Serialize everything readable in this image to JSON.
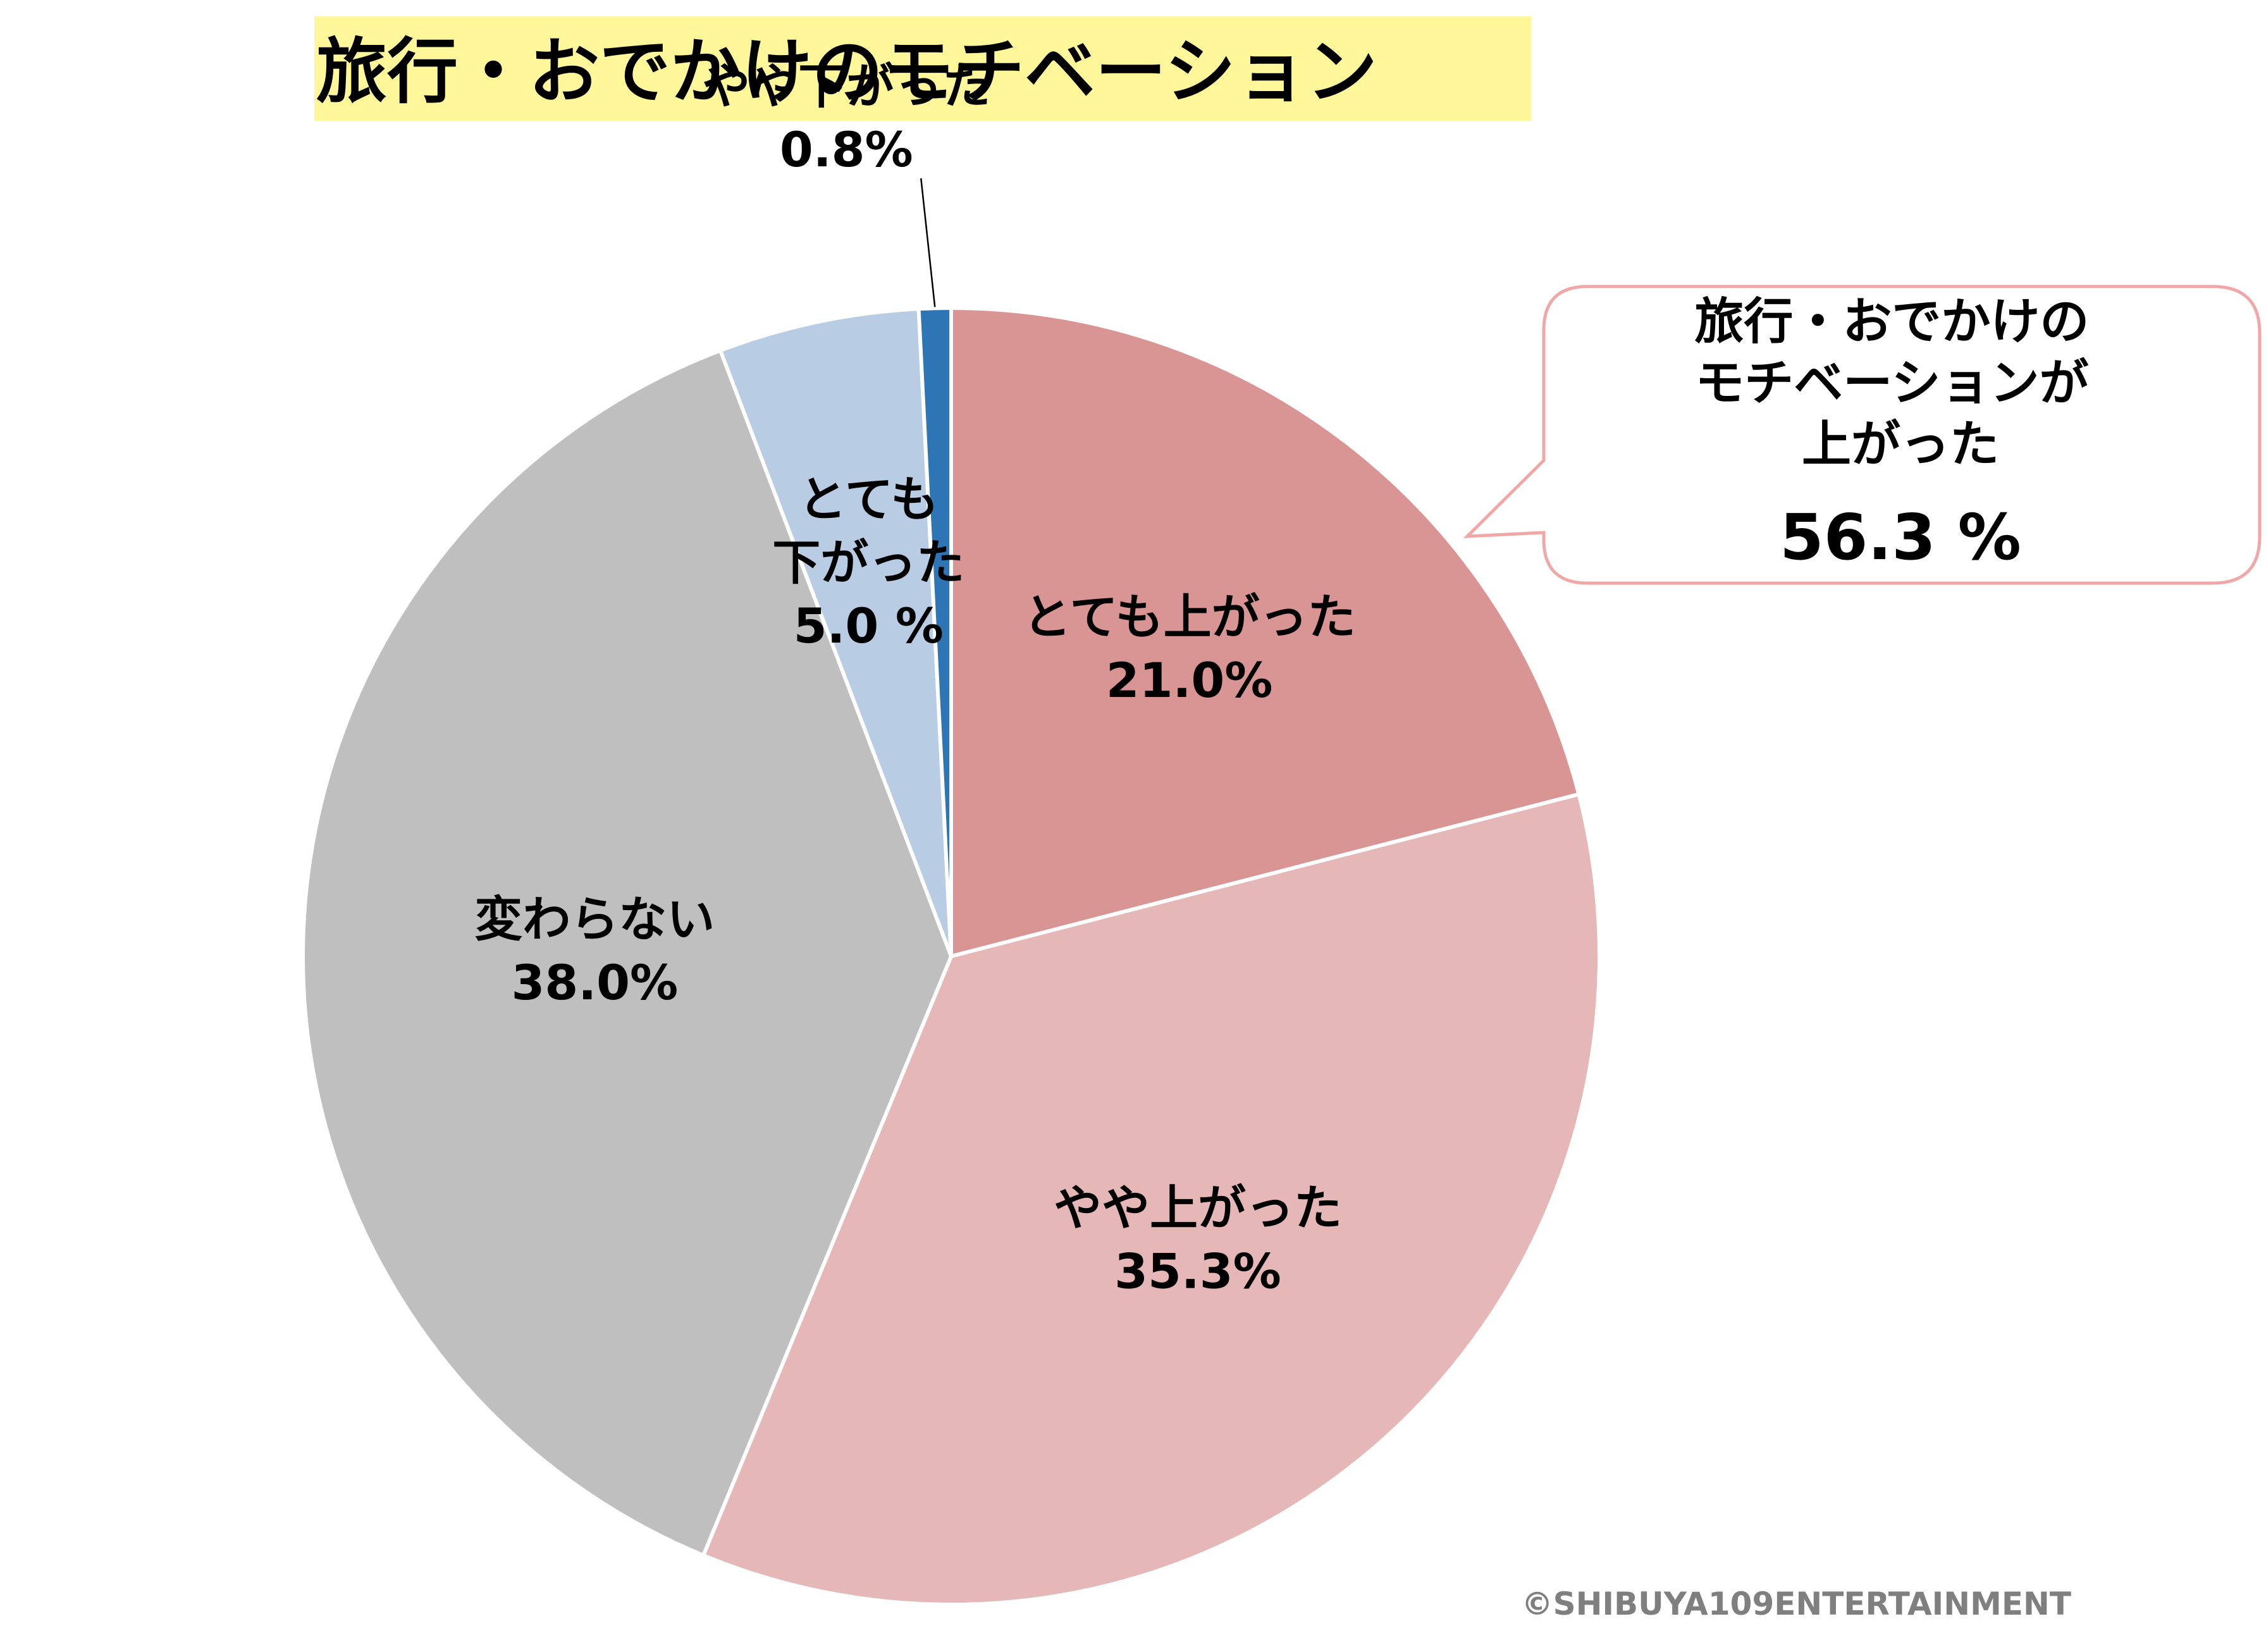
{
  "chart_data": {
    "type": "pie",
    "title": "旅行・おでかけのモチベーション",
    "unit": "%",
    "slices": [
      {
        "name": "とても上がった",
        "value": 21.0,
        "value_label": "21.0%",
        "color": "#d99594"
      },
      {
        "name": "やや上がった",
        "value": 35.3,
        "value_label": "35.3%",
        "color": "#e6b7b7"
      },
      {
        "name": "変わらない",
        "value": 38.0,
        "value_label": "38.0%",
        "color": "#bfbfbf"
      },
      {
        "name": "とても\n下がった",
        "value": 5.0,
        "value_label": "5.0 %",
        "color": "#b8cce4"
      },
      {
        "name": "やや下がった",
        "value": 0.8,
        "value_label": "0.8%",
        "color": "#2e75b6"
      }
    ],
    "start_angle_deg": 0,
    "direction": "clockwise",
    "legend": "none"
  },
  "callout": {
    "lines": [
      "旅行・おでかけの",
      "モチベーションが",
      "上がった"
    ],
    "value": "56.3 %",
    "border_color": "#f2a7a7"
  },
  "copyright": "©SHIBUYA109ENTERTAINMENT",
  "title_bg_color": "#fff79a"
}
